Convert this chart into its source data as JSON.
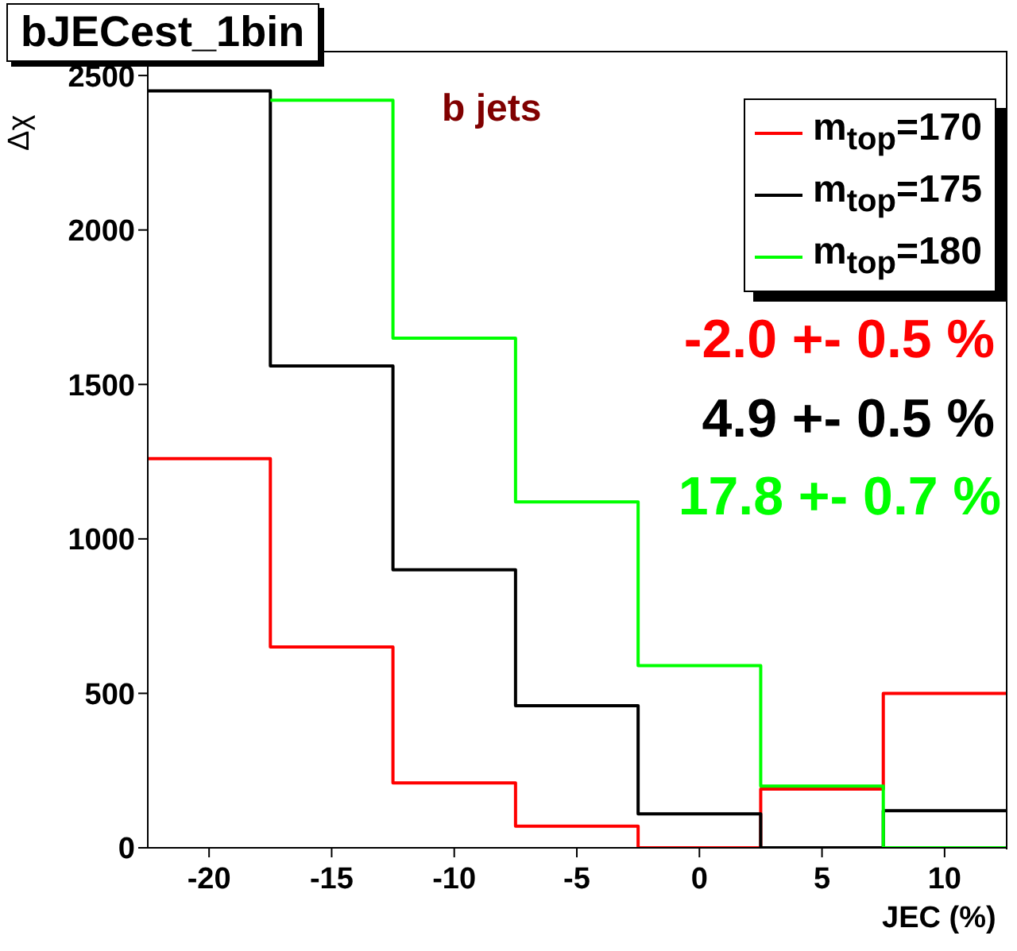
{
  "chart_data": {
    "type": "histogram",
    "title": "bJECest_1bin",
    "xlabel": "JEC (%)",
    "ylabel": "Δχ",
    "bins": [
      -22.5,
      -17.5,
      -12.5,
      -7.5,
      -2.5,
      2.5,
      7.5,
      12.5
    ],
    "series": [
      {
        "name": "m$_{top}$=170",
        "color": "#ff0000",
        "values": [
          1260,
          650,
          210,
          70,
          0,
          190,
          500
        ]
      },
      {
        "name": "m$_{top}$=175",
        "color": "#000000",
        "values": [
          2450,
          1560,
          900,
          460,
          110,
          0,
          120
        ]
      },
      {
        "name": "m$_{top}$=180",
        "color": "#00ff00",
        "bins": [
          -17.5,
          -12.5,
          -7.5,
          -2.5,
          2.5,
          7.5,
          12.5
        ],
        "values": [
          2420,
          1650,
          1120,
          590,
          200,
          0
        ]
      }
    ],
    "xlim": [
      -22.5,
      12.5
    ],
    "xticks": [
      -20,
      -15,
      -10,
      -5,
      0,
      5,
      10
    ],
    "ylim": [
      0,
      2580
    ],
    "yticks": [
      0,
      500,
      1000,
      1500,
      2000,
      2500
    ],
    "legend": "top right",
    "grid": false,
    "annotations": [
      "b jets",
      "-2.0 +- 0.5 %",
      "4.9 +- 0.5 %",
      "17.8 +- 0.7 %"
    ]
  }
}
